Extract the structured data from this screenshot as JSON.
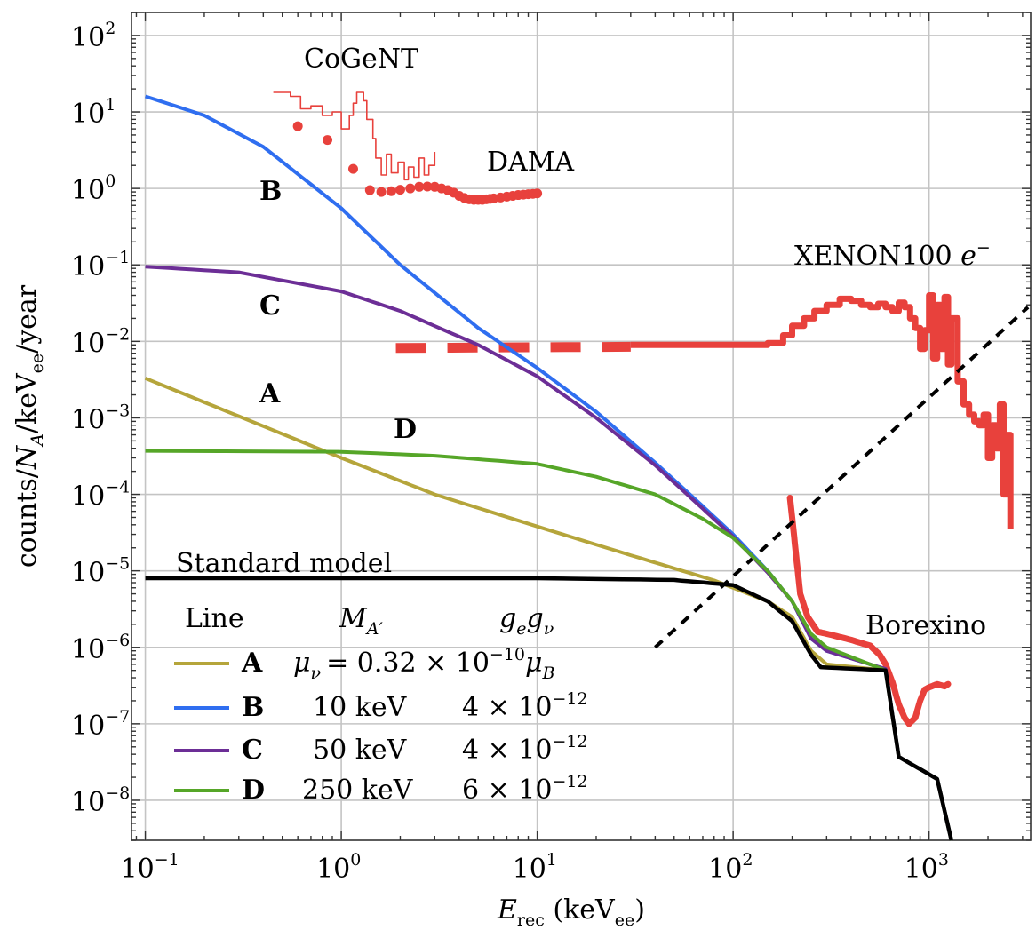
{
  "chart_data": {
    "type": "line",
    "xlabel": "E_rec (keV_ee)",
    "ylabel": "counts/N_A/keV_ee/year",
    "x_scale": "log",
    "y_scale": "log",
    "xlim": [
      0.085,
      3300
    ],
    "ylim": [
      3e-09,
      200
    ],
    "grid": true,
    "x_ticks": [
      {
        "value": 0.1,
        "label": "10",
        "exp": "−1"
      },
      {
        "value": 1,
        "label": "10",
        "exp": "0"
      },
      {
        "value": 10,
        "label": "10",
        "exp": "1"
      },
      {
        "value": 100,
        "label": "10",
        "exp": "2"
      },
      {
        "value": 1000,
        "label": "10",
        "exp": "3"
      }
    ],
    "y_ticks": [
      {
        "value": 1e-08,
        "label": "10",
        "exp": "−8"
      },
      {
        "value": 1e-07,
        "label": "10",
        "exp": "−7"
      },
      {
        "value": 1e-06,
        "label": "10",
        "exp": "−6"
      },
      {
        "value": 1e-05,
        "label": "10",
        "exp": "−5"
      },
      {
        "value": 0.0001,
        "label": "10",
        "exp": "−4"
      },
      {
        "value": 0.001,
        "label": "10",
        "exp": "−3"
      },
      {
        "value": 0.01,
        "label": "10",
        "exp": "−2"
      },
      {
        "value": 0.1,
        "label": "10",
        "exp": "−1"
      },
      {
        "value": 1,
        "label": "10",
        "exp": "0"
      },
      {
        "value": 10,
        "label": "10",
        "exp": "1"
      },
      {
        "value": 100,
        "label": "10",
        "exp": "2"
      }
    ],
    "series": [
      {
        "name": "A",
        "color": "#b5a53b",
        "points": [
          [
            0.1,
            0.0033
          ],
          [
            0.3,
            0.00105
          ],
          [
            1,
            0.0003
          ],
          [
            3,
            0.0001
          ],
          [
            10,
            3.8e-05
          ],
          [
            30,
            1.6e-05
          ],
          [
            80,
            7.5e-06
          ],
          [
            150,
            4e-06
          ],
          [
            200,
            2.5e-06
          ],
          [
            250,
            9e-07
          ],
          [
            300,
            6e-07
          ],
          [
            600,
            5e-07
          ],
          [
            700,
            3.7e-08
          ],
          [
            1100,
            1.9e-08
          ],
          [
            1300,
            3e-09
          ]
        ]
      },
      {
        "name": "B",
        "color": "#2f6ef0",
        "points": [
          [
            0.1,
            16
          ],
          [
            0.2,
            9
          ],
          [
            0.4,
            3.5
          ],
          [
            1,
            0.55
          ],
          [
            2,
            0.1
          ],
          [
            5,
            0.015
          ],
          [
            10,
            0.0045
          ],
          [
            20,
            0.0012
          ],
          [
            40,
            0.00026
          ],
          [
            70,
            7e-05
          ],
          [
            100,
            3e-05
          ],
          [
            150,
            1e-05
          ],
          [
            200,
            4e-06
          ],
          [
            250,
            1.3e-06
          ],
          [
            300,
            9e-07
          ],
          [
            600,
            5.2e-07
          ],
          [
            700,
            3.7e-08
          ],
          [
            1100,
            1.9e-08
          ],
          [
            1300,
            3e-09
          ]
        ]
      },
      {
        "name": "C",
        "color": "#6c2e96",
        "points": [
          [
            0.1,
            0.095
          ],
          [
            0.3,
            0.08
          ],
          [
            1,
            0.045
          ],
          [
            2,
            0.025
          ],
          [
            5,
            0.009
          ],
          [
            10,
            0.0035
          ],
          [
            20,
            0.001
          ],
          [
            40,
            0.00024
          ],
          [
            70,
            6.5e-05
          ],
          [
            100,
            2.8e-05
          ],
          [
            150,
            9.5e-06
          ],
          [
            200,
            4e-06
          ],
          [
            250,
            1.3e-06
          ],
          [
            300,
            9e-07
          ],
          [
            600,
            5.2e-07
          ],
          [
            700,
            3.7e-08
          ],
          [
            1100,
            1.9e-08
          ],
          [
            1300,
            3e-09
          ]
        ]
      },
      {
        "name": "D",
        "color": "#56a628",
        "points": [
          [
            0.1,
            0.00037
          ],
          [
            1,
            0.00036
          ],
          [
            3,
            0.00032
          ],
          [
            10,
            0.00025
          ],
          [
            20,
            0.00017
          ],
          [
            40,
            0.0001
          ],
          [
            70,
            4.8e-05
          ],
          [
            100,
            2.7e-05
          ],
          [
            150,
            1e-05
          ],
          [
            200,
            4e-06
          ],
          [
            250,
            1.5e-06
          ],
          [
            300,
            1e-06
          ],
          [
            600,
            5e-07
          ],
          [
            700,
            3.7e-08
          ],
          [
            1100,
            1.9e-08
          ],
          [
            1300,
            3e-09
          ]
        ]
      },
      {
        "name": "Standard model",
        "color": "#000000",
        "points": [
          [
            0.1,
            8e-06
          ],
          [
            10,
            8e-06
          ],
          [
            50,
            7.6e-06
          ],
          [
            100,
            6.5e-06
          ],
          [
            150,
            4e-06
          ],
          [
            200,
            2.2e-06
          ],
          [
            250,
            8e-07
          ],
          [
            280,
            5.5e-07
          ],
          [
            600,
            5e-07
          ],
          [
            700,
            3.7e-08
          ],
          [
            1100,
            1.9e-08
          ],
          [
            1300,
            3e-09
          ]
        ]
      }
    ],
    "experiments": [
      {
        "name": "CoGeNT",
        "color": "#e8413c",
        "style": "step",
        "points": [
          [
            0.45,
            18
          ],
          [
            0.55,
            16
          ],
          [
            0.62,
            11
          ],
          [
            0.7,
            12
          ],
          [
            0.8,
            9
          ],
          [
            0.9,
            10
          ],
          [
            1,
            6
          ],
          [
            1.1,
            9
          ],
          [
            1.15,
            13
          ],
          [
            1.2,
            18
          ],
          [
            1.3,
            14
          ],
          [
            1.35,
            8
          ],
          [
            1.45,
            4.5
          ],
          [
            1.5,
            2.5
          ],
          [
            1.6,
            1.5
          ],
          [
            1.7,
            2.8
          ],
          [
            1.8,
            1.6
          ],
          [
            1.95,
            2.2
          ],
          [
            2.1,
            1.3
          ],
          [
            2.2,
            1.9
          ],
          [
            2.35,
            1.4
          ],
          [
            2.5,
            2.5
          ],
          [
            2.65,
            1.5
          ],
          [
            2.8,
            2.0
          ],
          [
            3.0,
            3.0
          ]
        ]
      },
      {
        "name": "CoGeNT points",
        "color": "#e8413c",
        "style": "dots",
        "points": [
          [
            0.6,
            6.5
          ],
          [
            0.85,
            4.3
          ],
          [
            1.15,
            1.8
          ]
        ]
      },
      {
        "name": "DAMA",
        "color": "#e8413c",
        "style": "dots",
        "points": [
          [
            1.4,
            0.95
          ],
          [
            1.6,
            0.9
          ],
          [
            1.8,
            0.92
          ],
          [
            2.0,
            0.96
          ],
          [
            2.25,
            1.0
          ],
          [
            2.5,
            1.05
          ],
          [
            2.75,
            1.06
          ],
          [
            3.0,
            1.05
          ],
          [
            3.25,
            1.0
          ],
          [
            3.5,
            0.95
          ],
          [
            3.75,
            0.88
          ],
          [
            4.0,
            0.8
          ],
          [
            4.25,
            0.75
          ],
          [
            4.5,
            0.72
          ],
          [
            4.75,
            0.71
          ],
          [
            5.0,
            0.71
          ],
          [
            5.25,
            0.71
          ],
          [
            5.5,
            0.72
          ],
          [
            5.75,
            0.73
          ],
          [
            6.0,
            0.74
          ],
          [
            6.5,
            0.76
          ],
          [
            7.0,
            0.78
          ],
          [
            7.5,
            0.8
          ],
          [
            8.0,
            0.82
          ],
          [
            8.5,
            0.83
          ],
          [
            9.0,
            0.84
          ],
          [
            9.5,
            0.85
          ],
          [
            10,
            0.86
          ]
        ]
      },
      {
        "name": "XENON100 e⁻ (dashed)",
        "color": "#e8413c",
        "style": "dashed",
        "points": [
          [
            1.9,
            0.0082
          ],
          [
            30,
            0.0085
          ]
        ]
      },
      {
        "name": "XENON100 e⁻",
        "color": "#e8413c",
        "style": "step",
        "points": [
          [
            30,
            0.009
          ],
          [
            100,
            0.009
          ],
          [
            150,
            0.0095
          ],
          [
            180,
            0.012
          ],
          [
            200,
            0.016
          ],
          [
            230,
            0.02
          ],
          [
            260,
            0.025
          ],
          [
            300,
            0.03
          ],
          [
            350,
            0.036
          ],
          [
            400,
            0.034
          ],
          [
            450,
            0.03
          ],
          [
            500,
            0.028
          ],
          [
            550,
            0.031
          ],
          [
            600,
            0.028
          ],
          [
            650,
            0.025
          ],
          [
            700,
            0.032
          ],
          [
            750,
            0.028
          ],
          [
            800,
            0.02
          ],
          [
            850,
            0.015
          ],
          [
            900,
            0.008
          ],
          [
            950,
            0.014
          ],
          [
            1000,
            0.04
          ],
          [
            1050,
            0.006
          ],
          [
            1100,
            0.03
          ],
          [
            1150,
            0.008
          ],
          [
            1200,
            0.038
          ],
          [
            1250,
            0.005
          ],
          [
            1300,
            0.02
          ],
          [
            1400,
            0.003
          ],
          [
            1500,
            0.0015
          ],
          [
            1600,
            0.0011
          ],
          [
            1700,
            0.0009
          ],
          [
            1800,
            0.0008
          ],
          [
            1900,
            0.0011
          ],
          [
            2000,
            0.0003
          ],
          [
            2100,
            0.0008
          ],
          [
            2200,
            0.0004
          ],
          [
            2300,
            0.0015
          ],
          [
            2400,
            0.0001
          ],
          [
            2500,
            0.0006
          ],
          [
            2600,
            3.5e-05
          ]
        ]
      },
      {
        "name": "Borexino",
        "color": "#e8413c",
        "style": "line",
        "points": [
          [
            195,
            9e-05
          ],
          [
            200,
            5e-05
          ],
          [
            210,
            1.5e-05
          ],
          [
            220,
            5e-06
          ],
          [
            240,
            2.5e-06
          ],
          [
            270,
            1.6e-06
          ],
          [
            320,
            1.45e-06
          ],
          [
            400,
            1.25e-06
          ],
          [
            500,
            1.05e-06
          ],
          [
            560,
            8e-07
          ],
          [
            600,
            6e-07
          ],
          [
            650,
            3.5e-07
          ],
          [
            700,
            1.8e-07
          ],
          [
            750,
            1.2e-07
          ],
          [
            790,
            1e-07
          ],
          [
            850,
            1.2e-07
          ],
          [
            900,
            2e-07
          ],
          [
            950,
            2.8e-07
          ],
          [
            1000,
            3e-07
          ],
          [
            1100,
            3.3e-07
          ],
          [
            1200,
            3.1e-07
          ],
          [
            1250,
            3.3e-07
          ]
        ]
      },
      {
        "name": "reference",
        "color": "#000000",
        "style": "dotted",
        "points": [
          [
            40,
            1e-06
          ],
          [
            3200,
            0.028
          ]
        ]
      }
    ],
    "annotations": {
      "cogent": "CoGeNT",
      "dama": "DAMA",
      "xenon_prefix": "XENON100 ",
      "xenon_e": "e",
      "xenon_minus": "−",
      "borexino": "Borexino",
      "standard_model": "Standard model",
      "A": "A",
      "B": "B",
      "C": "C",
      "D": "D"
    },
    "legend": {
      "placement": "bottom-left",
      "headers": {
        "line": "Line",
        "mass": "M",
        "mass_sub": "A′",
        "coupling_1": "g",
        "coupling_1_sub": "e",
        "coupling_2": "g",
        "coupling_2_sub": "ν"
      },
      "rows": [
        {
          "key": "A",
          "color": "#b5a53b",
          "mass": "μ",
          "mass_sub": "ν",
          "coupling": "= 0.32 × 10",
          "coupling_exp": "−10",
          "coupling_tail": "μ",
          "coupling_tail_sub": "B"
        },
        {
          "key": "B",
          "color": "#2f6ef0",
          "mass": "10 keV",
          "coupling": "4 × 10",
          "coupling_exp": "−12"
        },
        {
          "key": "C",
          "color": "#6c2e96",
          "mass": "50 keV",
          "coupling": "4 × 10",
          "coupling_exp": "−12"
        },
        {
          "key": "D",
          "color": "#56a628",
          "mass": "250 keV",
          "coupling": "6 × 10",
          "coupling_exp": "−12"
        }
      ]
    },
    "ylabel_parts": {
      "a": "counts/",
      "n": "N",
      "n_sub": "A",
      "b": "/keV",
      "ee": "ee",
      "c": "/year"
    },
    "xlabel_parts": {
      "e": "E",
      "e_sub": "rec",
      "unit": " (keV",
      "unit_sub": "ee",
      "close": ")"
    }
  }
}
